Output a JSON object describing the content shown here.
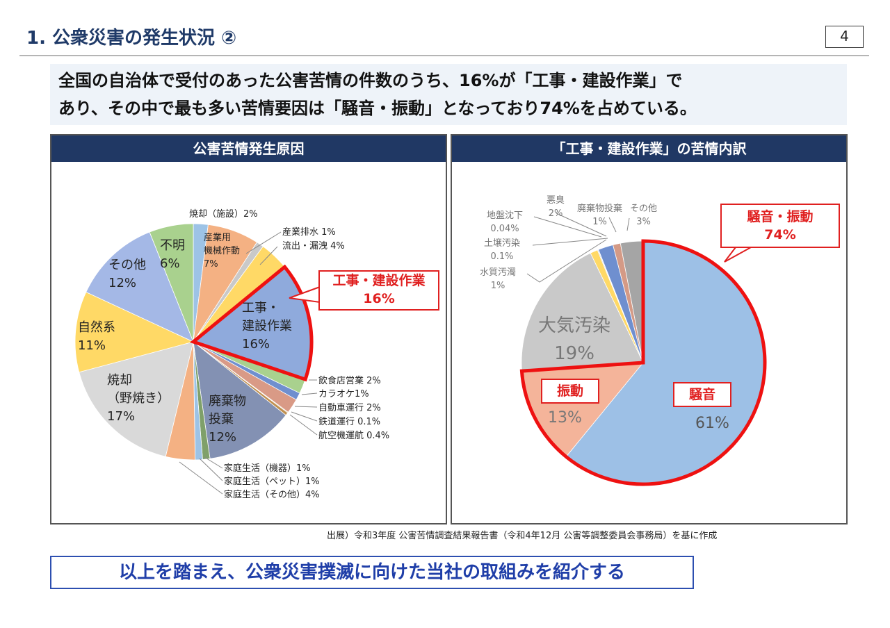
{
  "header": {
    "title": "1. 公衆災害の発生状況 ②",
    "page_number": "4"
  },
  "summary": {
    "line1": "全国の自治体で受付のあった公害苦情の件数のうち、16%が「工事・建設作業」で",
    "line2": "あり、その中で最も多い苦情要因は「騒音・振動」となっており74%を占めている。"
  },
  "chart_data": [
    {
      "type": "pie",
      "title": "公害苦情発生原因",
      "highlight": "工事・建設作業",
      "callout": {
        "label": "工事・建設作業",
        "value": "16%"
      },
      "slices": [
        {
          "name": "焼却（施設）",
          "value": 2,
          "label": "焼却（施設）2%",
          "color": "#9dc3e6"
        },
        {
          "name": "産業用機械作動",
          "value": 7,
          "label": "7%",
          "color": "#f4b183"
        },
        {
          "name": "産業排水",
          "value": 1,
          "label": "産業排水 1%",
          "color": "#c9c9c9"
        },
        {
          "name": "流出・漏洩",
          "value": 4,
          "label": "流出・漏洩 4%",
          "color": "#ffd966"
        },
        {
          "name": "工事・建設作業",
          "value": 16,
          "label": "16%",
          "color": "#8faadc"
        },
        {
          "name": "飲食店営業",
          "value": 2,
          "label": "飲食店営業 2%",
          "color": "#a9d18e"
        },
        {
          "name": "カラオケ",
          "value": 1,
          "label": "カラオケ1%",
          "color": "#6f8fcf"
        },
        {
          "name": "自動車運行",
          "value": 2,
          "label": "自動車運行 2%",
          "color": "#d99a86"
        },
        {
          "name": "鉄道運行",
          "value": 0.1,
          "label": "鉄道運行 0.1%",
          "color": "#b0a060"
        },
        {
          "name": "航空機運航",
          "value": 0.4,
          "label": "航空機運航 0.4%",
          "color": "#c09050"
        },
        {
          "name": "廃棄物投棄",
          "value": 12,
          "label": "12%",
          "color": "#8391b3"
        },
        {
          "name": "家庭生活（機器）",
          "value": 1,
          "label": "家庭生活（機器）1%",
          "color": "#7fa06a"
        },
        {
          "name": "家庭生活（ペット）",
          "value": 1,
          "label": "家庭生活（ペット）1%",
          "color": "#9dc3e6"
        },
        {
          "name": "家庭生活（その他）",
          "value": 4,
          "label": "家庭生活（その他）4%",
          "color": "#f4b183"
        },
        {
          "name": "焼却（野焼き）",
          "value": 17,
          "label": "17%",
          "color": "#d9d9d9"
        },
        {
          "name": "自然系",
          "value": 11,
          "label": "11%",
          "color": "#ffd966"
        },
        {
          "name": "その他",
          "value": 12,
          "label": "12%",
          "color": "#a4b8e6"
        },
        {
          "name": "不明",
          "value": 6,
          "label": "6%",
          "color": "#a9d18e"
        }
      ],
      "inner_labels": {
        "sangyo": [
          "産業用",
          "機械作動"
        ],
        "koji": [
          "工事・",
          "建設作業"
        ],
        "haiki": [
          "廃棄物",
          "投棄"
        ],
        "noyaki": [
          "焼却",
          "（野焼き）"
        ],
        "shizen": "自然系",
        "sonota": "その他",
        "fumei": "不明"
      }
    },
    {
      "type": "pie",
      "title": "「工事・建設作業」の苦情内訳",
      "highlight": "騒音・振動",
      "callout": {
        "label": "騒音・振動",
        "value": "74%"
      },
      "slices": [
        {
          "name": "騒音",
          "value": 61,
          "label": "61%",
          "color": "#9dc0e6"
        },
        {
          "name": "振動",
          "value": 13,
          "label": "13%",
          "color": "#f4b49a"
        },
        {
          "name": "大気汚染",
          "value": 19,
          "label": "19%",
          "color": "#c9c9c9"
        },
        {
          "name": "水質汚濁",
          "value": 1,
          "label": "1%",
          "color": "#ffd966"
        },
        {
          "name": "土壌汚染",
          "value": 0.1,
          "label": "0.1%",
          "color": "#5b7fbf"
        },
        {
          "name": "地盤沈下",
          "value": 0.04,
          "label": "0.04%",
          "color": "#7fa06a"
        },
        {
          "name": "悪臭",
          "value": 2,
          "label": "2%",
          "color": "#6f8fcf"
        },
        {
          "name": "廃棄物投棄",
          "value": 1,
          "label": "1%",
          "color": "#d49a86"
        },
        {
          "name": "その他",
          "value": 3,
          "label": "3%",
          "color": "#a5a5a5"
        }
      ]
    }
  ],
  "source": "出展）令和3年度 公害苦情調査結果報告書（令和4年12月 公害等調整委員会事務局）を基に作成",
  "conclusion": "以上を踏まえ、公衆災害撲滅に向けた当社の取組みを紹介する"
}
